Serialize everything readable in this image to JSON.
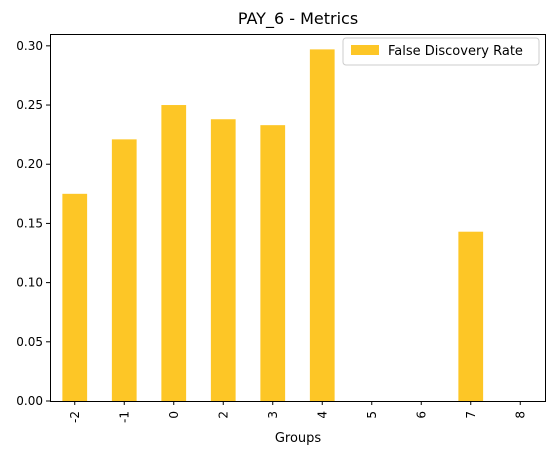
{
  "chart_data": {
    "type": "bar",
    "title": "PAY_6 - Metrics",
    "xlabel": "Groups",
    "ylabel": "",
    "categories": [
      "-2",
      "-1",
      "0",
      "2",
      "3",
      "4",
      "5",
      "6",
      "7",
      "8"
    ],
    "series": [
      {
        "name": "False Discovery Rate",
        "values": [
          0.175,
          0.221,
          0.25,
          0.238,
          0.233,
          0.297,
          0,
          0,
          0.143,
          0
        ],
        "color": "#fdc626"
      }
    ],
    "ylim": [
      0,
      0.31
    ],
    "yticks": [
      "0.00",
      "0.05",
      "0.10",
      "0.15",
      "0.20",
      "0.25",
      "0.30"
    ],
    "grid": false,
    "legend_position": "top-right"
  }
}
